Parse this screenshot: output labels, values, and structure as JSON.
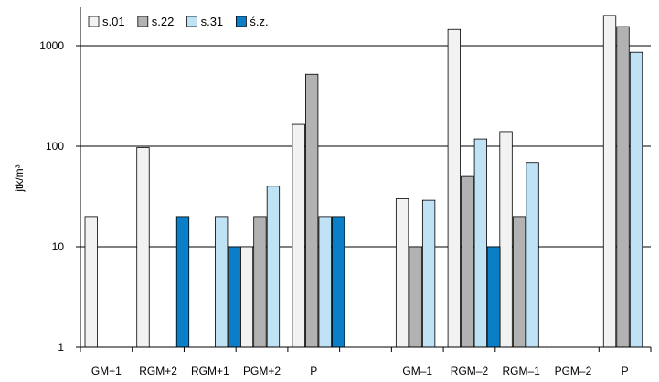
{
  "chart_data": {
    "type": "bar",
    "scale": "log",
    "ylabel": "jtk/m³",
    "ylim": [
      1,
      3000
    ],
    "yticks": [
      1,
      10,
      100,
      1000
    ],
    "ytick_labels": [
      "1",
      "10",
      "100",
      "1000"
    ],
    "grid": "horizontal",
    "legend_position": "top-left",
    "categories": [
      "GM+1",
      "RGM+2",
      "RGM+1",
      "PGM+2",
      "P",
      "",
      "GM–1",
      "RGM–2",
      "RGM–1",
      "PGM–2",
      "P"
    ],
    "series": [
      {
        "name": "s.01",
        "color": "#f2f2f2",
        "values": [
          20,
          97,
          null,
          10,
          165,
          null,
          30,
          1450,
          140,
          null,
          2000
        ]
      },
      {
        "name": "s.22",
        "color": "#b2b2b2",
        "values": [
          null,
          null,
          null,
          20,
          520,
          null,
          10,
          50,
          20,
          null,
          1550
        ]
      },
      {
        "name": "s.31",
        "color": "#bfe2f5",
        "values": [
          null,
          null,
          20,
          40,
          20,
          null,
          29,
          118,
          69,
          null,
          860
        ]
      },
      {
        "name": "ś.z.",
        "color": "#0a7fc8",
        "values": [
          null,
          20,
          10,
          null,
          20,
          null,
          null,
          10,
          null,
          null,
          null
        ]
      }
    ]
  }
}
